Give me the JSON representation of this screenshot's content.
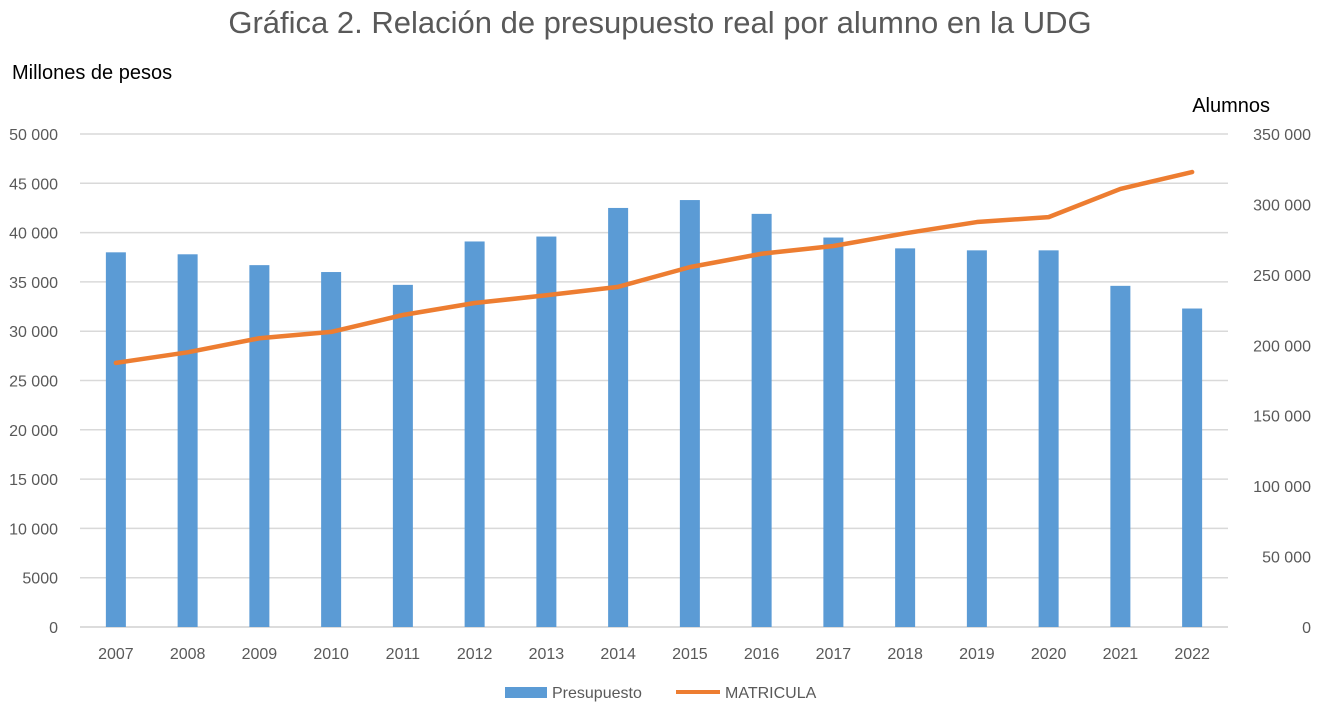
{
  "chart_data": {
    "type": "bar",
    "title": "Gráfica 2. Relación de presupuesto real por alumno en la UDG",
    "ylabel": "Millones de pesos",
    "y2label": "Alumnos",
    "categories": [
      "2007",
      "2008",
      "2009",
      "2010",
      "2011",
      "2012",
      "2013",
      "2014",
      "2015",
      "2016",
      "2017",
      "2018",
      "2019",
      "2020",
      "2021",
      "2022"
    ],
    "ylim": [
      0,
      50000
    ],
    "y2lim": [
      0,
      350000
    ],
    "yticks": [
      "0",
      "5000",
      "10 000",
      "15 000",
      "20 000",
      "25 000",
      "30 000",
      "35 000",
      "40 000",
      "45 000",
      "50 000"
    ],
    "y2ticks": [
      "0",
      "50 000",
      "100 000",
      "150 000",
      "200 000",
      "250 000",
      "300 000",
      "350 000"
    ],
    "grid": true,
    "legend_position": "bottom",
    "series": [
      {
        "name": "Presupuesto",
        "type": "bar",
        "axis": "left",
        "color": "#5b9bd5",
        "values": [
          38000,
          37800,
          36700,
          36000,
          34700,
          39100,
          39600,
          42500,
          43300,
          41900,
          39500,
          38400,
          38200,
          38200,
          34600,
          32300
        ]
      },
      {
        "name": "MATRICULA",
        "type": "line",
        "axis": "right",
        "color": "#ed7d31",
        "values": [
          187500,
          195000,
          205000,
          209500,
          221500,
          230000,
          235500,
          241500,
          255500,
          265000,
          270500,
          279500,
          287500,
          291000,
          311000,
          323000
        ]
      }
    ]
  }
}
